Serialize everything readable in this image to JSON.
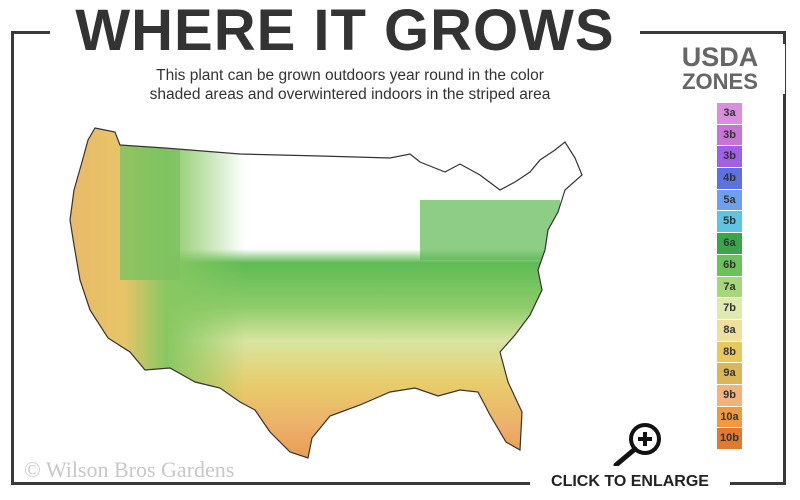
{
  "title": "WHERE IT GROWS",
  "subtitle_line1": "This plant can be grown outdoors year round in the color",
  "subtitle_line2": "shaded areas and overwintered indoors in the striped area",
  "legend": {
    "title_line1": "USDA",
    "title_line2": "ZONES",
    "zones": [
      {
        "label": "3a",
        "color": "#d98ee0"
      },
      {
        "label": "3b",
        "color": "#c774d6"
      },
      {
        "label": "3b",
        "color": "#a35ee8"
      },
      {
        "label": "4b",
        "color": "#5b72e0"
      },
      {
        "label": "5a",
        "color": "#6fa0ee"
      },
      {
        "label": "5b",
        "color": "#5cc6e2"
      },
      {
        "label": "6a",
        "color": "#3aa64a"
      },
      {
        "label": "6b",
        "color": "#6cc25a"
      },
      {
        "label": "7a",
        "color": "#a6d77a"
      },
      {
        "label": "7b",
        "color": "#dfe9b0"
      },
      {
        "label": "8a",
        "color": "#efe0a0"
      },
      {
        "label": "8b",
        "color": "#e8c85a"
      },
      {
        "label": "9a",
        "color": "#dab658"
      },
      {
        "label": "9b",
        "color": "#f0b47a"
      },
      {
        "label": "10a",
        "color": "#ef9a40"
      },
      {
        "label": "10b",
        "color": "#e07a30"
      }
    ]
  },
  "copyright": "© Wilson Bros Gardens",
  "enlarge_label": "CLICK TO ENLARGE",
  "icons": {
    "enlarge": "magnifier-plus-icon"
  }
}
